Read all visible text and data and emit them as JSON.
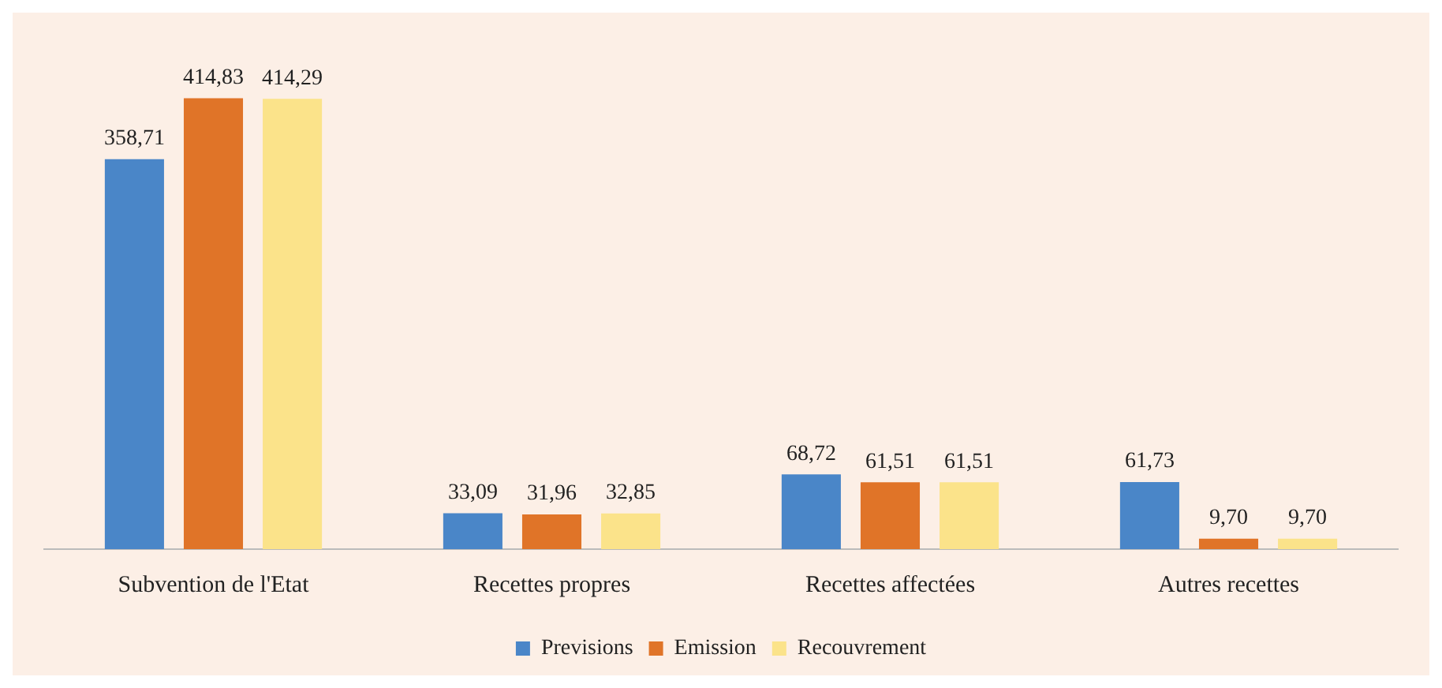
{
  "chart_data": {
    "type": "bar",
    "categories": [
      "Subvention de l'Etat",
      "Recettes propres",
      "Recettes affectées",
      "Autres recettes"
    ],
    "series": [
      {
        "name": "Previsions",
        "color": "#4a86c8",
        "values": [
          358.71,
          33.09,
          68.72,
          61.73
        ],
        "value_labels": [
          "358,71",
          "33,09",
          "68,72",
          "61,73"
        ]
      },
      {
        "name": "Emission",
        "color": "#e07428",
        "values": [
          414.83,
          31.96,
          61.51,
          9.7
        ],
        "value_labels": [
          "414,83",
          "31,96",
          "61,51",
          "9,70"
        ]
      },
      {
        "name": "Recouvrement",
        "color": "#fbe38a",
        "values": [
          414.29,
          32.85,
          61.51,
          9.7
        ],
        "value_labels": [
          "414,29",
          "32,85",
          "61,51",
          "9,70"
        ]
      }
    ],
    "legend": "bottom",
    "grid": false
  }
}
